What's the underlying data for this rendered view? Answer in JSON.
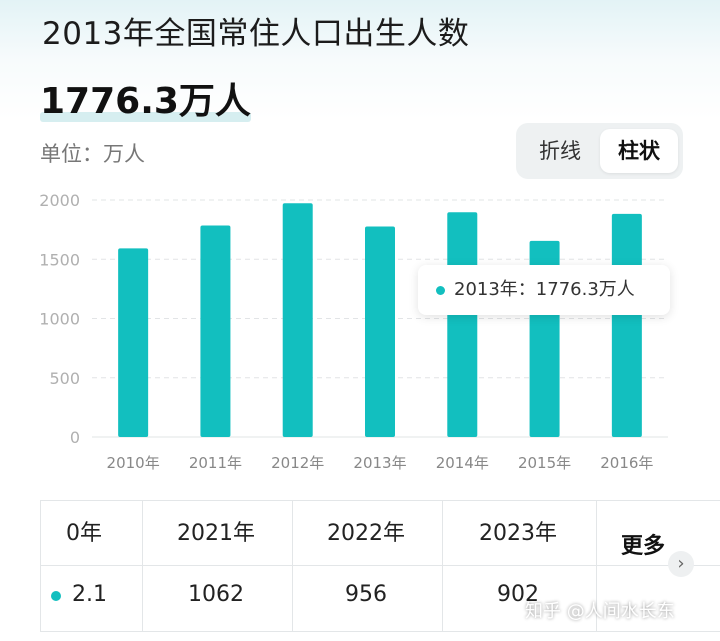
{
  "header": {
    "title": "2013年全国常住人口出生人数",
    "value": "1776.3万人",
    "unit_label": "单位：万人"
  },
  "toggle": {
    "line_label": "折线",
    "bar_label": "柱状"
  },
  "tooltip": {
    "text": "2013年：1776.3万人"
  },
  "chart_data": {
    "type": "bar",
    "categories": [
      "2010年",
      "2011年",
      "2012年",
      "2013年",
      "2014年",
      "2015年",
      "2016年"
    ],
    "values": [
      1592,
      1785,
      1973,
      1776.3,
      1897,
      1655,
      1883
    ],
    "ylim": [
      0,
      2000
    ],
    "yticks": [
      0,
      500,
      1000,
      1500,
      2000
    ],
    "grid": true,
    "color": "#12bfbf"
  },
  "table": {
    "headers": [
      "0年",
      "2021年",
      "2022年",
      "2023年"
    ],
    "values": [
      "2.1",
      "1062",
      "956",
      "902"
    ],
    "more_label": "更多"
  },
  "watermark": "知乎 @人间水长东"
}
